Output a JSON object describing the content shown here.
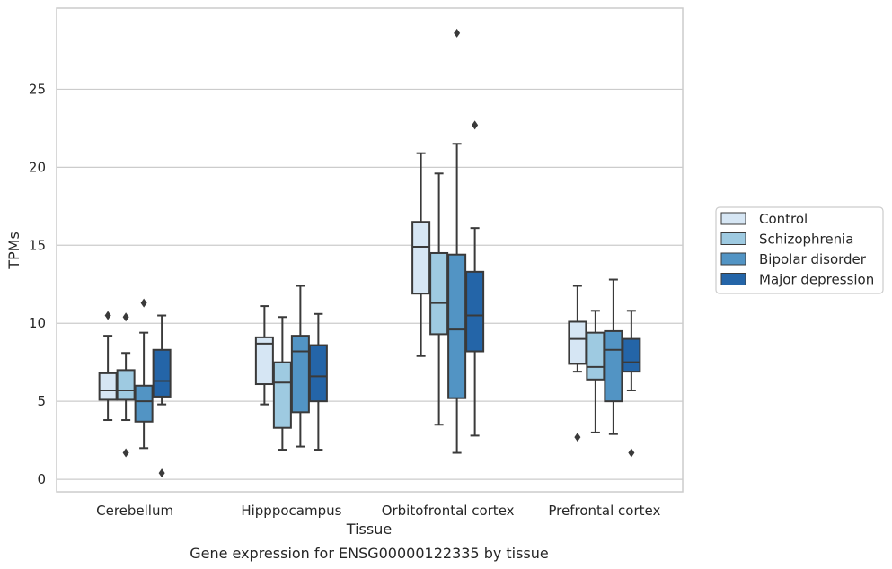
{
  "caption": "Gene expression for ENSG00000122335 by tissue",
  "chart_data": {
    "type": "box",
    "xlabel": "Tissue",
    "ylabel": "TPMs",
    "ylim": [
      -0.8,
      30.2
    ],
    "yticks": [
      0,
      5,
      10,
      15,
      20,
      25
    ],
    "grid": "horizontal",
    "legend_placement": "right",
    "categories": [
      "Cerebellum",
      "Hipppocampus",
      "Orbitofrontal cortex",
      "Prefrontal cortex"
    ],
    "series": [
      {
        "name": "Control",
        "color": "#d6e6f4",
        "boxes": [
          {
            "whisker_low": 3.8,
            "q1": 5.1,
            "median": 5.7,
            "q3": 6.8,
            "whisker_high": 9.2,
            "outliers": [
              10.5
            ]
          },
          {
            "whisker_low": 4.8,
            "q1": 6.1,
            "median": 8.7,
            "q3": 9.1,
            "whisker_high": 11.1,
            "outliers": []
          },
          {
            "whisker_low": 7.9,
            "q1": 11.9,
            "median": 14.9,
            "q3": 16.5,
            "whisker_high": 20.9,
            "outliers": []
          },
          {
            "whisker_low": 6.9,
            "q1": 7.4,
            "median": 9.0,
            "q3": 10.1,
            "whisker_high": 12.4,
            "outliers": [
              2.7
            ]
          }
        ]
      },
      {
        "name": "Schizophrenia",
        "color": "#9ecae1",
        "boxes": [
          {
            "whisker_low": 3.8,
            "q1": 5.1,
            "median": 5.7,
            "q3": 7.0,
            "whisker_high": 8.1,
            "outliers": [
              10.4,
              1.7
            ]
          },
          {
            "whisker_low": 1.9,
            "q1": 3.3,
            "median": 6.2,
            "q3": 7.5,
            "whisker_high": 10.4,
            "outliers": []
          },
          {
            "whisker_low": 3.5,
            "q1": 9.3,
            "median": 11.3,
            "q3": 14.5,
            "whisker_high": 19.6,
            "outliers": []
          },
          {
            "whisker_low": 3.0,
            "q1": 6.4,
            "median": 7.2,
            "q3": 9.4,
            "whisker_high": 10.8,
            "outliers": []
          }
        ]
      },
      {
        "name": "Bipolar disorder",
        "color": "#5294c4",
        "boxes": [
          {
            "whisker_low": 2.0,
            "q1": 3.7,
            "median": 5.0,
            "q3": 6.0,
            "whisker_high": 9.4,
            "outliers": [
              11.3
            ]
          },
          {
            "whisker_low": 2.1,
            "q1": 4.3,
            "median": 8.2,
            "q3": 9.2,
            "whisker_high": 12.4,
            "outliers": []
          },
          {
            "whisker_low": 1.7,
            "q1": 5.2,
            "median": 9.6,
            "q3": 14.4,
            "whisker_high": 21.5,
            "outliers": [
              28.6
            ]
          },
          {
            "whisker_low": 2.9,
            "q1": 5.0,
            "median": 8.3,
            "q3": 9.5,
            "whisker_high": 12.8,
            "outliers": []
          }
        ]
      },
      {
        "name": "Major depression",
        "color": "#2465a8",
        "boxes": [
          {
            "whisker_low": 4.8,
            "q1": 5.3,
            "median": 6.3,
            "q3": 8.3,
            "whisker_high": 10.5,
            "outliers": [
              0.4
            ]
          },
          {
            "whisker_low": 1.9,
            "q1": 5.0,
            "median": 6.6,
            "q3": 8.6,
            "whisker_high": 10.6,
            "outliers": []
          },
          {
            "whisker_low": 2.8,
            "q1": 8.2,
            "median": 10.5,
            "q3": 13.3,
            "whisker_high": 16.1,
            "outliers": [
              22.7
            ]
          },
          {
            "whisker_low": 5.7,
            "q1": 6.9,
            "median": 7.5,
            "q3": 9.0,
            "whisker_high": 10.8,
            "outliers": [
              1.7
            ]
          }
        ]
      }
    ]
  }
}
